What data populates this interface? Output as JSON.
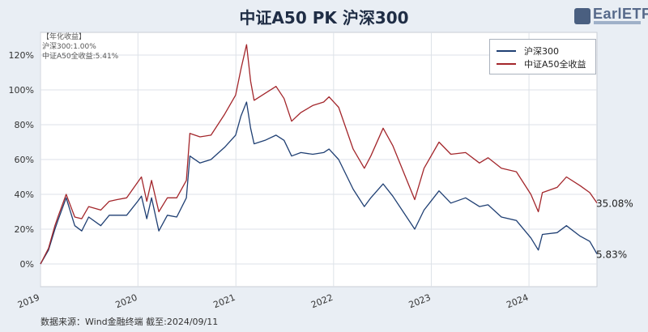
{
  "title": "中证A50 PK 沪深300",
  "logo": {
    "text": "EarlETF"
  },
  "annotations": [
    "【年化收益】",
    "沪深300:1.00%",
    "中证A50全收益:5.41%"
  ],
  "source": "数据来源：Wind金融终端 截至:2024/09/11",
  "colors": {
    "hs300": "#1f3f73",
    "a50": "#a3262b"
  },
  "chart_data": {
    "type": "line",
    "title": "中证A50 PK 沪深300",
    "xlabel": "",
    "ylabel": "",
    "ylim": [
      -0.13,
      1.33
    ],
    "xlim": [
      "2019-01-02",
      "2024-09-11"
    ],
    "yticks": [
      0,
      0.2,
      0.4,
      0.6,
      0.8,
      1.0,
      1.2
    ],
    "ytick_labels": [
      "0%",
      "20%",
      "40%",
      "60%",
      "80%",
      "100%",
      "120%"
    ],
    "xticks": [
      "2019",
      "2020",
      "2021",
      "2022",
      "2023",
      "2024"
    ],
    "grid": true,
    "legend": "top-right",
    "series": [
      {
        "name": "沪深300",
        "color": "#1f3f73",
        "end_label": "5.83%",
        "points": [
          [
            "2019-01-02",
            0.0
          ],
          [
            "2019-02-01",
            0.08
          ],
          [
            "2019-02-25",
            0.2
          ],
          [
            "2019-03-08",
            0.25
          ],
          [
            "2019-04-08",
            0.38
          ],
          [
            "2019-05-10",
            0.22
          ],
          [
            "2019-06-05",
            0.19
          ],
          [
            "2019-07-01",
            0.27
          ],
          [
            "2019-08-15",
            0.22
          ],
          [
            "2019-09-16",
            0.28
          ],
          [
            "2019-10-15",
            0.28
          ],
          [
            "2019-11-20",
            0.28
          ],
          [
            "2019-12-31",
            0.36
          ],
          [
            "2020-01-14",
            0.39
          ],
          [
            "2020-02-03",
            0.26
          ],
          [
            "2020-02-21",
            0.38
          ],
          [
            "2020-03-19",
            0.19
          ],
          [
            "2020-04-20",
            0.28
          ],
          [
            "2020-05-25",
            0.27
          ],
          [
            "2020-06-30",
            0.38
          ],
          [
            "2020-07-13",
            0.62
          ],
          [
            "2020-08-20",
            0.58
          ],
          [
            "2020-09-30",
            0.6
          ],
          [
            "2020-11-20",
            0.67
          ],
          [
            "2020-12-31",
            0.74
          ],
          [
            "2021-01-20",
            0.85
          ],
          [
            "2021-02-10",
            0.93
          ],
          [
            "2021-02-25",
            0.78
          ],
          [
            "2021-03-10",
            0.69
          ],
          [
            "2021-04-20",
            0.71
          ],
          [
            "2021-05-31",
            0.74
          ],
          [
            "2021-06-30",
            0.71
          ],
          [
            "2021-07-28",
            0.62
          ],
          [
            "2021-09-01",
            0.64
          ],
          [
            "2021-10-15",
            0.63
          ],
          [
            "2021-11-25",
            0.64
          ],
          [
            "2021-12-15",
            0.66
          ],
          [
            "2022-01-20",
            0.6
          ],
          [
            "2022-03-15",
            0.43
          ],
          [
            "2022-04-26",
            0.33
          ],
          [
            "2022-05-20",
            0.38
          ],
          [
            "2022-07-05",
            0.46
          ],
          [
            "2022-08-10",
            0.39
          ],
          [
            "2022-10-31",
            0.2
          ],
          [
            "2022-12-05",
            0.31
          ],
          [
            "2023-01-30",
            0.42
          ],
          [
            "2023-03-15",
            0.35
          ],
          [
            "2023-05-09",
            0.38
          ],
          [
            "2023-06-30",
            0.33
          ],
          [
            "2023-08-01",
            0.34
          ],
          [
            "2023-09-20",
            0.27
          ],
          [
            "2023-11-15",
            0.25
          ],
          [
            "2024-01-08",
            0.15
          ],
          [
            "2024-02-05",
            0.08
          ],
          [
            "2024-02-20",
            0.17
          ],
          [
            "2024-04-15",
            0.18
          ],
          [
            "2024-05-20",
            0.22
          ],
          [
            "2024-07-10",
            0.16
          ],
          [
            "2024-08-15",
            0.13
          ],
          [
            "2024-09-11",
            0.058
          ]
        ]
      },
      {
        "name": "中证A50全收益",
        "color": "#a3262b",
        "end_label": "35.08%",
        "points": [
          [
            "2019-01-02",
            0.0
          ],
          [
            "2019-02-01",
            0.09
          ],
          [
            "2019-02-25",
            0.22
          ],
          [
            "2019-03-08",
            0.27
          ],
          [
            "2019-04-08",
            0.4
          ],
          [
            "2019-05-10",
            0.27
          ],
          [
            "2019-06-05",
            0.26
          ],
          [
            "2019-07-01",
            0.33
          ],
          [
            "2019-08-15",
            0.31
          ],
          [
            "2019-09-16",
            0.36
          ],
          [
            "2019-10-15",
            0.37
          ],
          [
            "2019-11-20",
            0.38
          ],
          [
            "2019-12-31",
            0.47
          ],
          [
            "2020-01-14",
            0.5
          ],
          [
            "2020-02-03",
            0.36
          ],
          [
            "2020-02-21",
            0.48
          ],
          [
            "2020-03-19",
            0.3
          ],
          [
            "2020-04-20",
            0.38
          ],
          [
            "2020-05-25",
            0.38
          ],
          [
            "2020-06-30",
            0.48
          ],
          [
            "2020-07-13",
            0.75
          ],
          [
            "2020-08-20",
            0.73
          ],
          [
            "2020-09-30",
            0.74
          ],
          [
            "2020-11-20",
            0.86
          ],
          [
            "2020-12-31",
            0.97
          ],
          [
            "2021-01-20",
            1.12
          ],
          [
            "2021-02-10",
            1.26
          ],
          [
            "2021-02-25",
            1.05
          ],
          [
            "2021-03-10",
            0.94
          ],
          [
            "2021-04-20",
            0.98
          ],
          [
            "2021-05-31",
            1.02
          ],
          [
            "2021-06-30",
            0.95
          ],
          [
            "2021-07-28",
            0.82
          ],
          [
            "2021-09-01",
            0.87
          ],
          [
            "2021-10-15",
            0.91
          ],
          [
            "2021-11-25",
            0.93
          ],
          [
            "2021-12-15",
            0.96
          ],
          [
            "2022-01-20",
            0.9
          ],
          [
            "2022-03-15",
            0.66
          ],
          [
            "2022-04-26",
            0.55
          ],
          [
            "2022-05-20",
            0.62
          ],
          [
            "2022-07-05",
            0.78
          ],
          [
            "2022-08-10",
            0.68
          ],
          [
            "2022-10-31",
            0.37
          ],
          [
            "2022-12-05",
            0.55
          ],
          [
            "2023-01-30",
            0.7
          ],
          [
            "2023-03-15",
            0.63
          ],
          [
            "2023-05-09",
            0.64
          ],
          [
            "2023-06-30",
            0.58
          ],
          [
            "2023-08-01",
            0.61
          ],
          [
            "2023-09-20",
            0.55
          ],
          [
            "2023-11-15",
            0.53
          ],
          [
            "2024-01-08",
            0.4
          ],
          [
            "2024-02-05",
            0.3
          ],
          [
            "2024-02-20",
            0.41
          ],
          [
            "2024-04-15",
            0.44
          ],
          [
            "2024-05-20",
            0.5
          ],
          [
            "2024-07-10",
            0.45
          ],
          [
            "2024-08-15",
            0.41
          ],
          [
            "2024-09-11",
            0.351
          ]
        ]
      }
    ]
  }
}
